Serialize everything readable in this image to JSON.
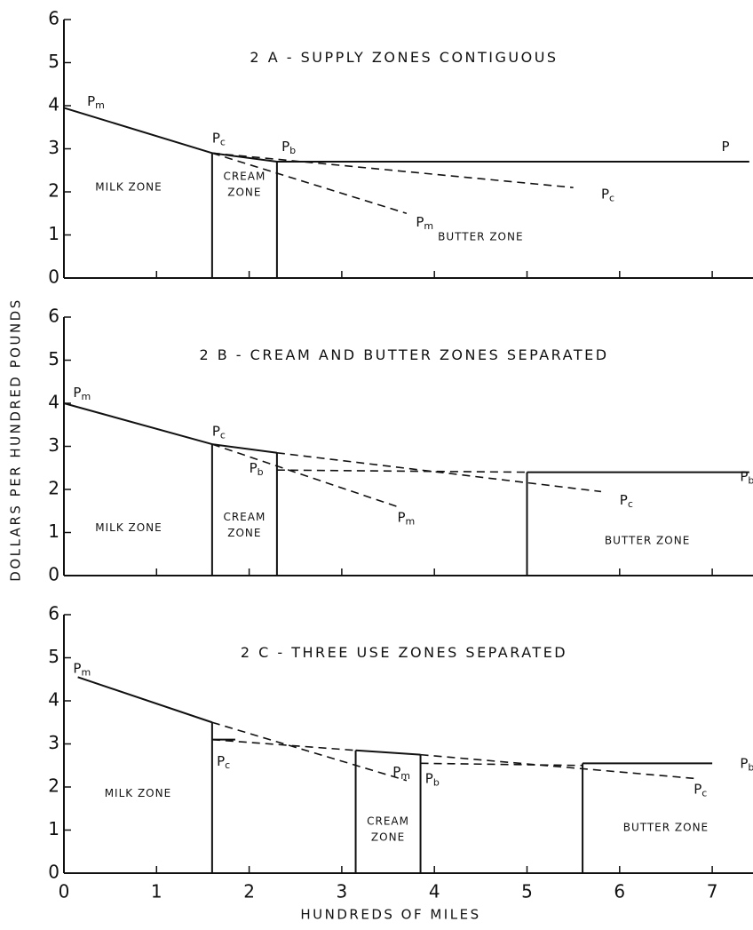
{
  "ylabel": "DOLLARS PER HUNDRED POUNDS",
  "xlabel": "HUNDREDS OF MILES",
  "chart_data": [
    {
      "type": "line",
      "title": "2 A - SUPPLY ZONES CONTIGUOUS",
      "xlim": [
        0,
        7.4
      ],
      "ylim": [
        0,
        6
      ],
      "xticks": [
        0,
        1,
        2,
        3,
        4,
        5,
        6,
        7
      ],
      "yticks": [
        0,
        1,
        2,
        3,
        4,
        5,
        6
      ],
      "xtick_labels": false,
      "series": [
        {
          "style": "solid",
          "x": [
            0,
            1.6
          ],
          "values": [
            3.95,
            2.9
          ]
        },
        {
          "style": "solid",
          "x": [
            1.6,
            2.3
          ],
          "values": [
            2.9,
            2.7
          ]
        },
        {
          "style": "solid",
          "x": [
            2.3,
            7.4
          ],
          "values": [
            2.7,
            2.7
          ]
        },
        {
          "style": "dashed",
          "x": [
            1.6,
            3.7
          ],
          "values": [
            2.9,
            1.5
          ]
        },
        {
          "style": "dashed",
          "x": [
            1.6,
            5.5
          ],
          "values": [
            2.9,
            2.1
          ]
        },
        {
          "style": "solid",
          "x": [
            1.6,
            1.6
          ],
          "values": [
            0,
            2.9
          ]
        },
        {
          "style": "solid",
          "x": [
            2.3,
            2.3
          ],
          "values": [
            0,
            2.7
          ]
        }
      ],
      "line_labels": [
        {
          "text": "P",
          "sub": "m"
        },
        {
          "text": "P",
          "sub": "c"
        },
        {
          "text": "P",
          "sub": "b"
        },
        {
          "text": "P",
          "sub": "m"
        },
        {
          "text": "P",
          "sub": "c"
        },
        {
          "text": "P",
          "sub": ""
        }
      ],
      "zones": [
        [
          "MILK ZONE"
        ],
        [
          "CREAM",
          "ZONE"
        ],
        [
          "BUTTER ZONE"
        ]
      ]
    },
    {
      "type": "line",
      "title": "2 B - CREAM AND BUTTER ZONES SEPARATED",
      "xlim": [
        0,
        7.4
      ],
      "ylim": [
        0,
        6
      ],
      "xticks": [
        0,
        1,
        2,
        3,
        4,
        5,
        6,
        7
      ],
      "yticks": [
        0,
        1,
        2,
        3,
        4,
        5,
        6
      ],
      "xtick_labels": false,
      "series": [
        {
          "style": "solid",
          "x": [
            0,
            1.6
          ],
          "values": [
            4.0,
            3.05
          ]
        },
        {
          "style": "solid",
          "x": [
            1.6,
            2.3
          ],
          "values": [
            3.05,
            2.85
          ]
        },
        {
          "style": "dashed",
          "x": [
            2.3,
            5.8
          ],
          "values": [
            2.85,
            1.95
          ]
        },
        {
          "style": "dashed",
          "x": [
            1.6,
            3.6
          ],
          "values": [
            3.05,
            1.6
          ]
        },
        {
          "style": "dashed",
          "x": [
            2.3,
            5.0
          ],
          "values": [
            2.45,
            2.4
          ]
        },
        {
          "style": "solid",
          "x": [
            5.0,
            7.4
          ],
          "values": [
            2.4,
            2.4
          ]
        },
        {
          "style": "solid",
          "x": [
            1.6,
            1.6
          ],
          "values": [
            0,
            3.05
          ]
        },
        {
          "style": "solid",
          "x": [
            2.3,
            2.3
          ],
          "values": [
            0,
            2.85
          ]
        },
        {
          "style": "solid",
          "x": [
            5.0,
            5.0
          ],
          "values": [
            0,
            2.4
          ]
        }
      ],
      "line_labels": [
        {
          "text": "P",
          "sub": "m"
        },
        {
          "text": "P",
          "sub": "c"
        },
        {
          "text": "P",
          "sub": "b"
        },
        {
          "text": "P",
          "sub": "m"
        },
        {
          "text": "P",
          "sub": "c"
        },
        {
          "text": "P",
          "sub": "b"
        }
      ],
      "zones": [
        [
          "MILK ZONE"
        ],
        [
          "CREAM",
          "ZONE"
        ],
        [
          "BUTTER ZONE"
        ]
      ]
    },
    {
      "type": "line",
      "title": "2 C - THREE USE ZONES SEPARATED",
      "xlim": [
        0,
        7.4
      ],
      "ylim": [
        0,
        6
      ],
      "xticks": [
        0,
        1,
        2,
        3,
        4,
        5,
        6,
        7
      ],
      "yticks": [
        0,
        1,
        2,
        3,
        4,
        5,
        6
      ],
      "xtick_labels": true,
      "series": [
        {
          "style": "solid",
          "x": [
            0.15,
            1.6
          ],
          "values": [
            4.55,
            3.5
          ]
        },
        {
          "style": "dashed",
          "x": [
            1.6,
            3.7
          ],
          "values": [
            3.5,
            2.15
          ]
        },
        {
          "style": "solid",
          "x": [
            1.6,
            1.85
          ],
          "values": [
            3.1,
            3.1
          ]
        },
        {
          "style": "dashed",
          "x": [
            1.6,
            3.15
          ],
          "values": [
            3.1,
            2.85
          ]
        },
        {
          "style": "solid",
          "x": [
            3.15,
            3.85
          ],
          "values": [
            2.85,
            2.75
          ]
        },
        {
          "style": "dashed",
          "x": [
            3.85,
            6.8
          ],
          "values": [
            2.75,
            2.2
          ]
        },
        {
          "style": "dashed",
          "x": [
            3.85,
            5.6
          ],
          "values": [
            2.55,
            2.5
          ]
        },
        {
          "style": "solid",
          "x": [
            5.6,
            7.0
          ],
          "values": [
            2.55,
            2.55
          ]
        },
        {
          "style": "solid",
          "x": [
            1.6,
            1.6
          ],
          "values": [
            0,
            3.5
          ]
        },
        {
          "style": "solid",
          "x": [
            3.15,
            3.15
          ],
          "values": [
            0,
            2.85
          ]
        },
        {
          "style": "solid",
          "x": [
            3.85,
            3.85
          ],
          "values": [
            0,
            2.75
          ]
        },
        {
          "style": "solid",
          "x": [
            5.6,
            5.6
          ],
          "values": [
            0,
            2.55
          ]
        }
      ],
      "line_labels": [
        {
          "text": "P",
          "sub": "m"
        },
        {
          "text": "P",
          "sub": "c"
        },
        {
          "text": "P",
          "sub": "m"
        },
        {
          "text": "P",
          "sub": "b"
        },
        {
          "text": "P",
          "sub": "b"
        },
        {
          "text": "P",
          "sub": "c"
        }
      ],
      "zones": [
        [
          "MILK ZONE"
        ],
        [
          "CREAM",
          "ZONE"
        ],
        [
          "BUTTER ZONE"
        ]
      ]
    }
  ]
}
